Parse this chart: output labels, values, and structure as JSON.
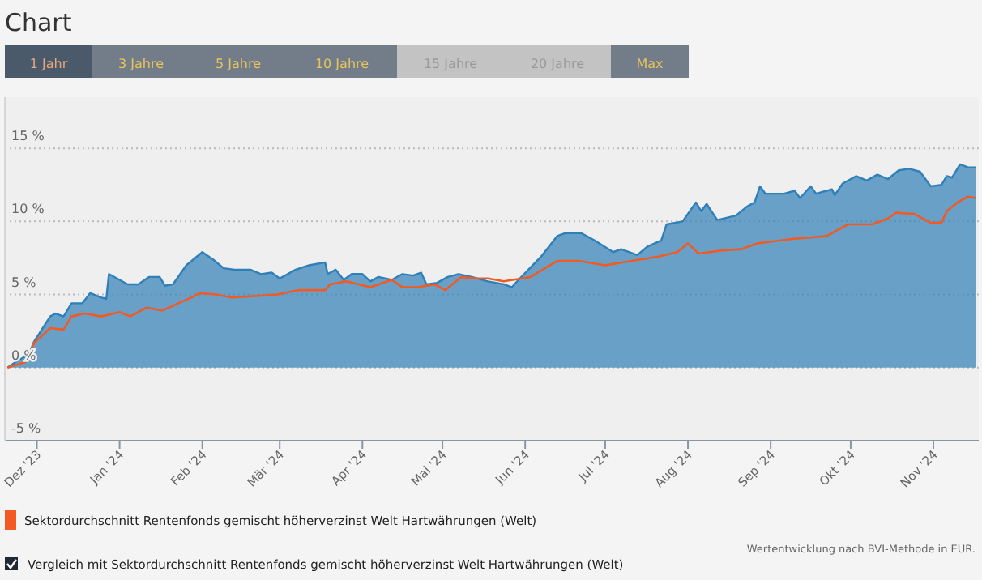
{
  "chart_data": {
    "type": "area",
    "title": "Chart",
    "annotations": [
      "1 Jahr",
      "3 Jahre",
      "5 Jahre",
      "10 Jahre",
      "15 Jahre",
      "20 Jahre",
      "Max",
      "Wertentwicklung nach BVI-Methode in EUR.",
      "Vergleich mit Sektordurchschnitt Rentenfonds gemischt höherverzinst Welt Hartwährungen (Welt)"
    ],
    "xlim": [
      "2023-11-19",
      "2024-11-18"
    ],
    "xticks": [
      {
        "value": "2023-12-01",
        "label": "Dez '23"
      },
      {
        "value": "2024-01-01",
        "label": "Jan '24"
      },
      {
        "value": "2024-02-01",
        "label": "Feb '24"
      },
      {
        "value": "2024-03-01",
        "label": "Mär '24"
      },
      {
        "value": "2024-04-01",
        "label": "Apr '24"
      },
      {
        "value": "2024-05-01",
        "label": "Mai '24"
      },
      {
        "value": "2024-06-01",
        "label": "Jun '24"
      },
      {
        "value": "2024-07-01",
        "label": "Jul '24"
      },
      {
        "value": "2024-08-01",
        "label": "Aug '24"
      },
      {
        "value": "2024-09-01",
        "label": "Sep '24"
      },
      {
        "value": "2024-10-01",
        "label": "Okt '24"
      },
      {
        "value": "2024-11-01",
        "label": "Nov '24"
      }
    ],
    "ylim": [
      -5,
      18.5
    ],
    "yticks": [
      {
        "value": -5,
        "label": "-5 %"
      },
      {
        "value": 0,
        "label": "0 %"
      },
      {
        "value": 5,
        "label": "5 %"
      },
      {
        "value": 10,
        "label": "10 %"
      },
      {
        "value": 15,
        "label": "15 %"
      }
    ],
    "grid": "y",
    "legend": "bottom",
    "series": [
      {
        "color": "#2f7fb8",
        "x": [
          "2023-11-20",
          "2023-11-24",
          "2023-11-28",
          "2023-11-30",
          "2023-12-06",
          "2023-12-08",
          "2023-12-11",
          "2023-12-14",
          "2023-12-18",
          "2023-12-21",
          "2023-12-25",
          "2023-12-27",
          "2023-12-28",
          "2024-01-04",
          "2024-01-08",
          "2024-01-12",
          "2024-01-16",
          "2024-01-18",
          "2024-01-21",
          "2024-01-26",
          "2024-02-01",
          "2024-02-05",
          "2024-02-09",
          "2024-02-13",
          "2024-02-19",
          "2024-02-23",
          "2024-02-27",
          "2024-03-01",
          "2024-03-07",
          "2024-03-12",
          "2024-03-18",
          "2024-03-19",
          "2024-03-22",
          "2024-03-25",
          "2024-03-28",
          "2024-04-01",
          "2024-04-04",
          "2024-04-07",
          "2024-04-12",
          "2024-04-16",
          "2024-04-20",
          "2024-04-23",
          "2024-04-25",
          "2024-04-29",
          "2024-05-03",
          "2024-05-07",
          "2024-05-12",
          "2024-05-18",
          "2024-05-24",
          "2024-05-27",
          "2024-05-30",
          "2024-06-07",
          "2024-06-13",
          "2024-06-16",
          "2024-06-22",
          "2024-06-27",
          "2024-07-04",
          "2024-07-07",
          "2024-07-13",
          "2024-07-17",
          "2024-07-22",
          "2024-07-24",
          "2024-07-30",
          "2024-08-04",
          "2024-08-06",
          "2024-08-08",
          "2024-08-12",
          "2024-08-19",
          "2024-08-23",
          "2024-08-26",
          "2024-08-28",
          "2024-08-30",
          "2024-09-06",
          "2024-09-10",
          "2024-09-12",
          "2024-09-16",
          "2024-09-18",
          "2024-09-24",
          "2024-09-25",
          "2024-09-28",
          "2024-10-03",
          "2024-10-07",
          "2024-10-11",
          "2024-10-15",
          "2024-10-19",
          "2024-10-23",
          "2024-10-27",
          "2024-10-31",
          "2024-11-04",
          "2024-11-06",
          "2024-11-08",
          "2024-11-11",
          "2024-11-14",
          "2024-11-17"
        ],
        "values": [
          0,
          0.5,
          0.9,
          1.8,
          3.5,
          3.7,
          3.5,
          4.4,
          4.4,
          5.1,
          4.8,
          4.7,
          6.4,
          5.7,
          5.7,
          6.2,
          6.2,
          5.6,
          5.7,
          7.0,
          7.9,
          7.4,
          6.8,
          6.7,
          6.7,
          6.4,
          6.5,
          6.1,
          6.7,
          7.0,
          7.2,
          6.4,
          6.7,
          6.0,
          6.4,
          6.4,
          5.9,
          6.2,
          6.0,
          6.4,
          6.3,
          6.5,
          5.7,
          5.8,
          6.2,
          6.4,
          6.2,
          5.9,
          5.7,
          5.5,
          6.1,
          7.6,
          9.0,
          9.2,
          9.2,
          8.7,
          7.9,
          8.1,
          7.7,
          8.3,
          8.7,
          9.8,
          10.0,
          11.3,
          10.7,
          11.2,
          10.1,
          10.4,
          11.0,
          11.3,
          12.4,
          11.9,
          11.9,
          12.1,
          11.6,
          12.4,
          11.9,
          12.2,
          11.8,
          12.6,
          13.1,
          12.8,
          13.2,
          12.9,
          13.5,
          13.6,
          13.4,
          12.4,
          12.5,
          13.1,
          13.0,
          13.9,
          13.7,
          13.7
        ]
      },
      {
        "type": "line",
        "name": "Sektordurchschnitt Rentenfonds gemischt höherverzinst Welt Hartwährungen (Welt)",
        "color": "#f15a22",
        "x": [
          "2023-11-20",
          "2023-11-27",
          "2023-11-30",
          "2023-12-06",
          "2023-12-11",
          "2023-12-14",
          "2023-12-19",
          "2023-12-25",
          "2024-01-01",
          "2024-01-05",
          "2024-01-11",
          "2024-01-17",
          "2024-01-23",
          "2024-01-28",
          "2024-01-31",
          "2024-02-06",
          "2024-02-12",
          "2024-02-21",
          "2024-02-29",
          "2024-03-08",
          "2024-03-18",
          "2024-03-20",
          "2024-03-26",
          "2024-04-04",
          "2024-04-12",
          "2024-04-16",
          "2024-04-22",
          "2024-04-28",
          "2024-05-02",
          "2024-05-08",
          "2024-05-14",
          "2024-05-18",
          "2024-05-24",
          "2024-06-03",
          "2024-06-13",
          "2024-06-21",
          "2024-07-01",
          "2024-07-11",
          "2024-07-21",
          "2024-07-28",
          "2024-08-01",
          "2024-08-05",
          "2024-08-13",
          "2024-08-21",
          "2024-08-27",
          "2024-09-09",
          "2024-09-16",
          "2024-09-22",
          "2024-09-30",
          "2024-10-09",
          "2024-10-15",
          "2024-10-18",
          "2024-10-25",
          "2024-10-31",
          "2024-11-04",
          "2024-11-06",
          "2024-11-10",
          "2024-11-14",
          "2024-11-17"
        ],
        "values": [
          0,
          0.4,
          1.7,
          2.7,
          2.6,
          3.5,
          3.7,
          3.5,
          3.8,
          3.5,
          4.1,
          3.9,
          4.4,
          4.8,
          5.1,
          5.0,
          4.8,
          4.9,
          5.0,
          5.3,
          5.3,
          5.7,
          5.9,
          5.5,
          6.0,
          5.5,
          5.5,
          5.7,
          5.3,
          6.2,
          6.1,
          6.1,
          5.9,
          6.2,
          7.3,
          7.3,
          7.0,
          7.3,
          7.6,
          7.9,
          8.5,
          7.8,
          8.0,
          8.1,
          8.5,
          8.8,
          8.9,
          9.0,
          9.8,
          9.8,
          10.2,
          10.6,
          10.5,
          9.9,
          9.9,
          10.7,
          11.3,
          11.7,
          11.6
        ]
      }
    ]
  }
}
